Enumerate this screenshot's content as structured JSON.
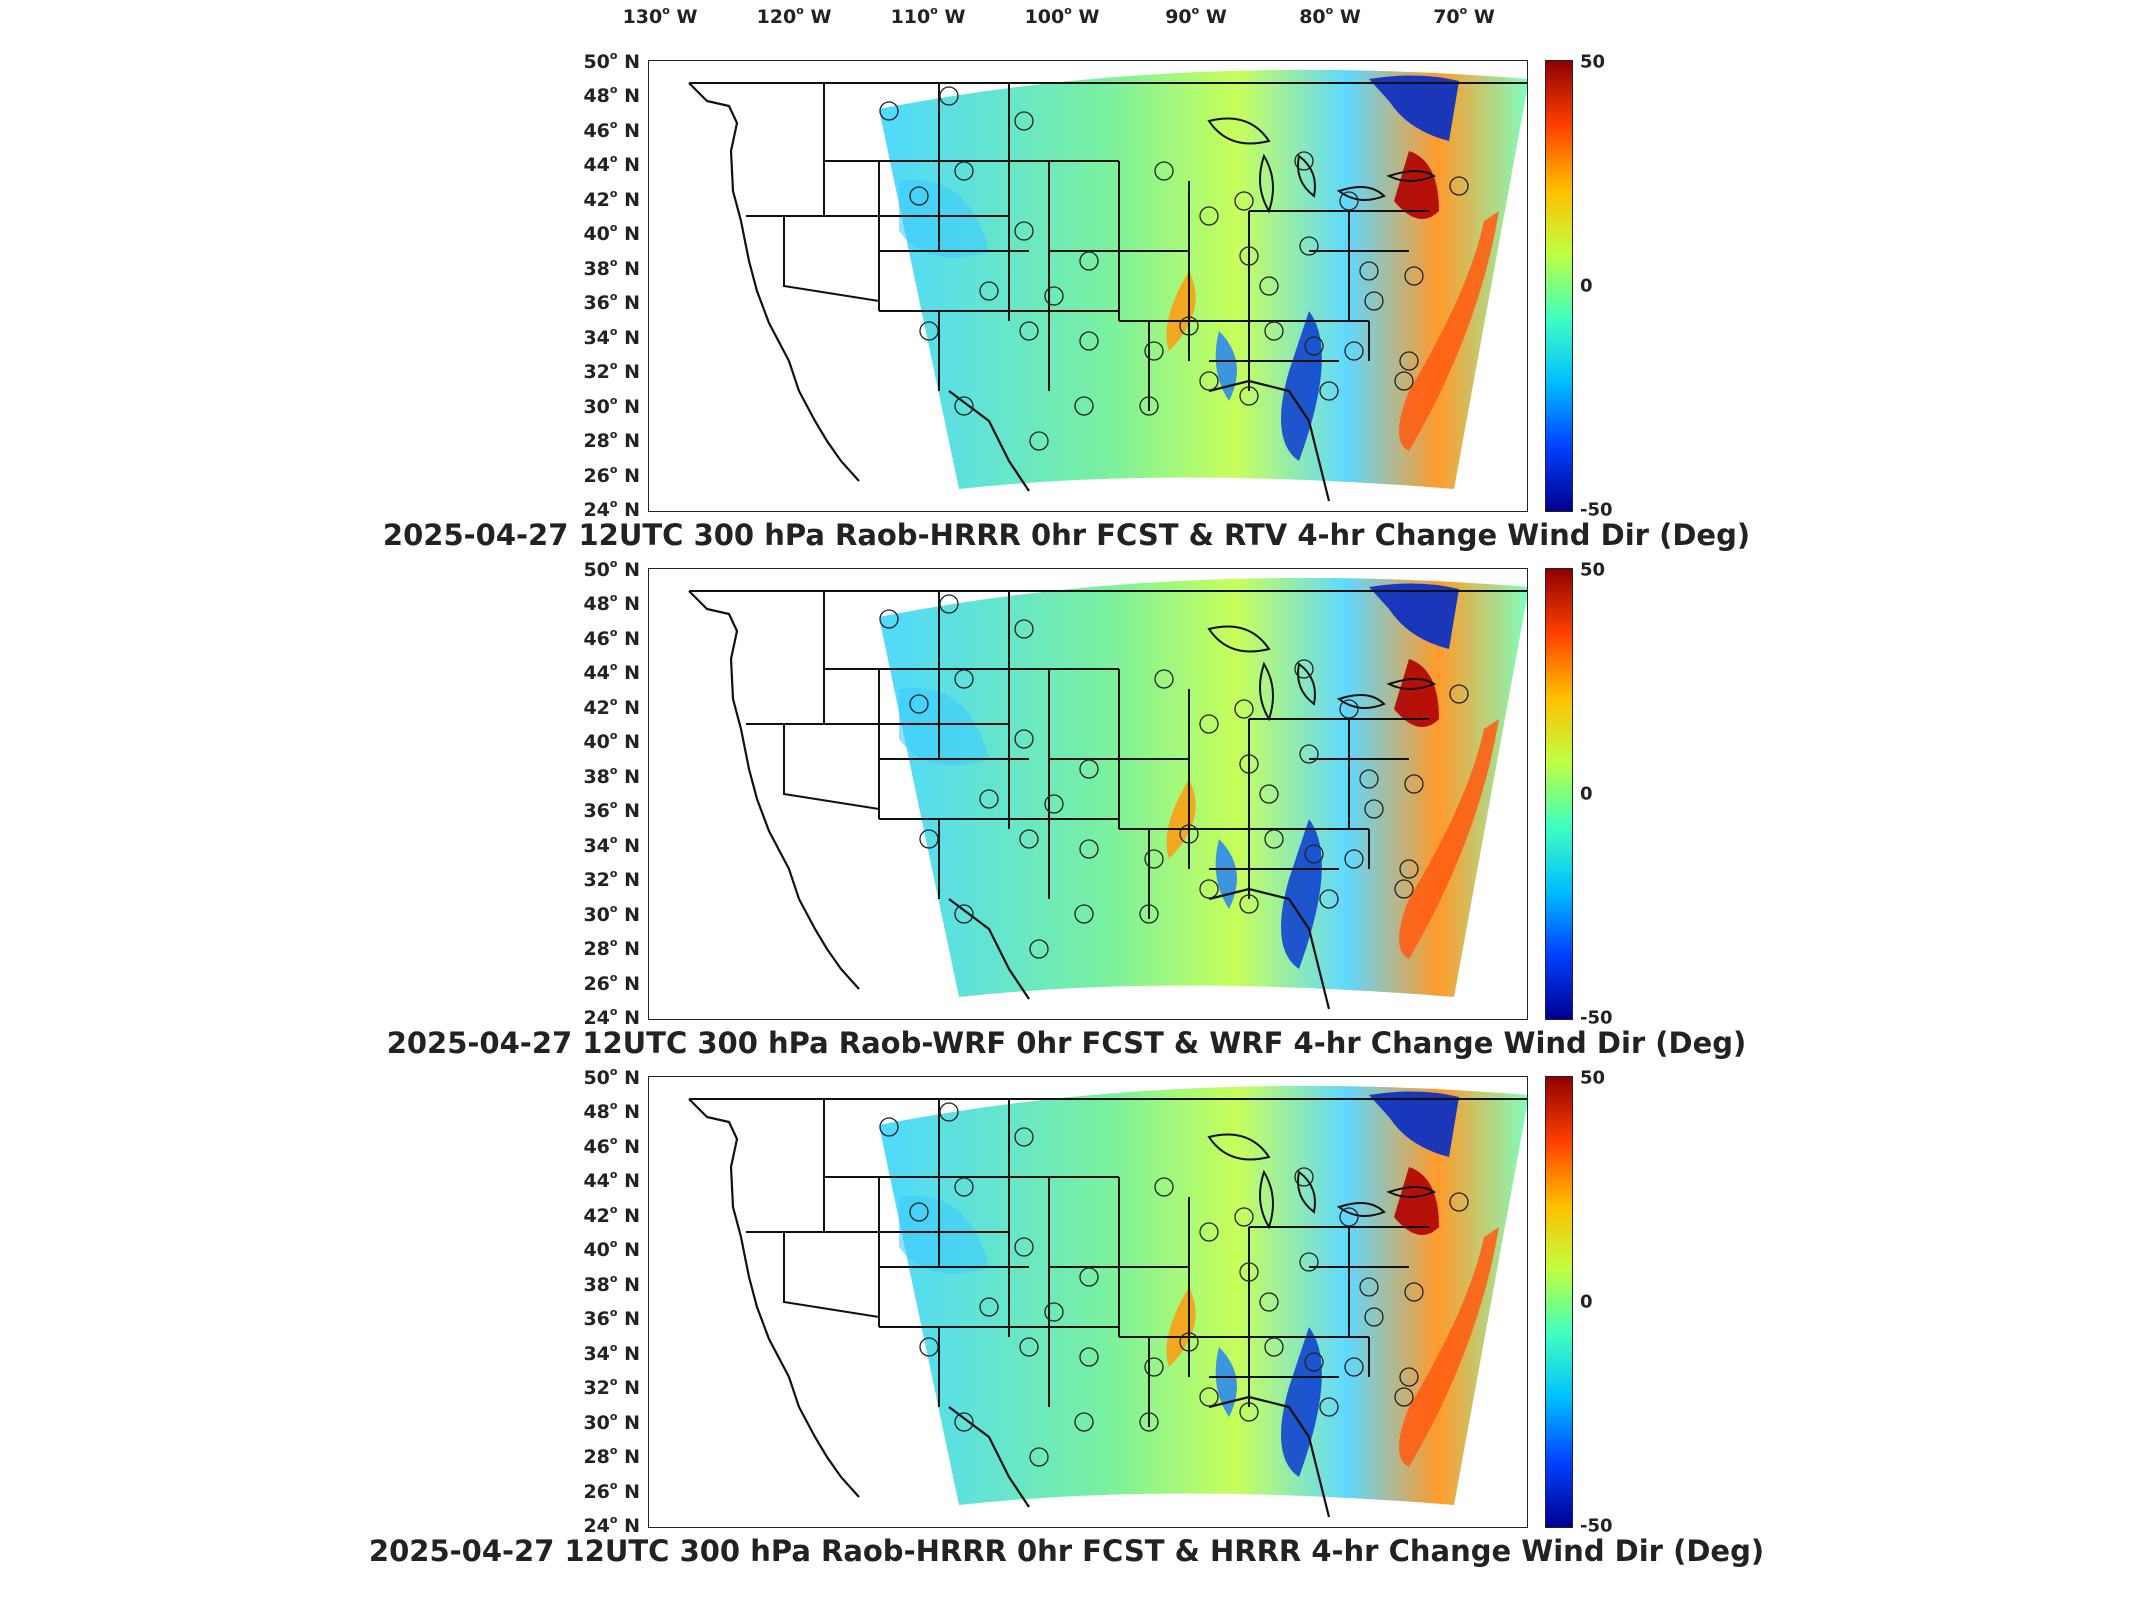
{
  "lon_labels": [
    "130",
    "120",
    "110",
    "100",
    "90",
    "80",
    "70"
  ],
  "lon_suffix": "W",
  "lat_labels": [
    "50",
    "48",
    "46",
    "44",
    "42",
    "40",
    "38",
    "36",
    "34",
    "32",
    "30",
    "28",
    "26",
    "24"
  ],
  "lat_suffix": "N",
  "colorbar": {
    "max": "50",
    "mid": "0",
    "min": "-50",
    "colors": [
      "#00008f",
      "#0040ff",
      "#00bfff",
      "#40ffbf",
      "#bfff40",
      "#ffbf00",
      "#ff4000",
      "#8f0000"
    ]
  },
  "panels": [
    {
      "title": "2025-04-27 12UTC 300 hPa Raob-HRRR 0hr FCST & RTV 4-hr Change Wind Dir (Deg)"
    },
    {
      "title": "2025-04-27 12UTC 300 hPa Raob-WRF 0hr FCST & WRF 4-hr Change Wind Dir (Deg)"
    },
    {
      "title": "2025-04-27 12UTC 300 hPa Raob-HRRR 0hr FCST & HRRR 4-hr Change Wind Dir (Deg)"
    }
  ]
}
